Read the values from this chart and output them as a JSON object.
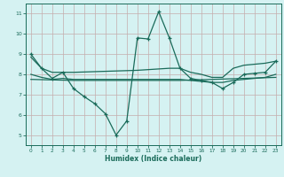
{
  "line1_x": [
    0,
    1,
    2,
    3,
    4,
    5,
    6,
    7,
    8,
    9,
    10,
    11,
    12,
    13,
    14,
    15,
    16,
    17,
    18,
    19,
    20,
    21,
    22,
    23
  ],
  "line1_y": [
    9.0,
    8.3,
    7.8,
    8.1,
    7.3,
    6.9,
    6.55,
    6.05,
    5.0,
    5.7,
    9.8,
    9.75,
    11.1,
    9.8,
    8.3,
    7.8,
    7.7,
    7.6,
    7.3,
    7.6,
    8.0,
    8.05,
    8.1,
    8.65
  ],
  "line2_x": [
    0,
    1,
    2,
    3,
    4,
    10,
    13,
    14,
    15,
    16,
    17,
    18,
    19,
    20,
    21,
    22,
    23
  ],
  "line2_y": [
    8.85,
    8.3,
    8.1,
    8.1,
    8.1,
    8.2,
    8.3,
    8.3,
    8.1,
    8.0,
    7.85,
    7.85,
    8.3,
    8.45,
    8.5,
    8.55,
    8.65
  ],
  "line3_x": [
    0,
    1,
    2,
    3,
    4,
    10,
    13,
    14,
    15,
    16,
    17,
    18,
    19,
    20,
    21,
    22,
    23
  ],
  "line3_y": [
    8.0,
    7.85,
    7.75,
    7.8,
    7.75,
    7.75,
    7.75,
    7.75,
    7.7,
    7.65,
    7.6,
    7.6,
    7.7,
    7.75,
    7.8,
    7.85,
    8.0
  ],
  "line4_x": [
    0,
    4,
    10,
    14,
    23
  ],
  "line4_y": [
    7.75,
    7.7,
    7.7,
    7.7,
    7.85
  ],
  "line_color": "#1a6b5a",
  "bg_color": "#d5f2f2",
  "grid_color": "#c4adad",
  "xlabel": "Humidex (Indice chaleur)",
  "xlim": [
    -0.5,
    23.5
  ],
  "ylim": [
    4.5,
    11.5
  ],
  "yticks": [
    5,
    6,
    7,
    8,
    9,
    10,
    11
  ],
  "xticks": [
    0,
    1,
    2,
    3,
    4,
    5,
    6,
    7,
    8,
    9,
    10,
    11,
    12,
    13,
    14,
    15,
    16,
    17,
    18,
    19,
    20,
    21,
    22,
    23
  ]
}
